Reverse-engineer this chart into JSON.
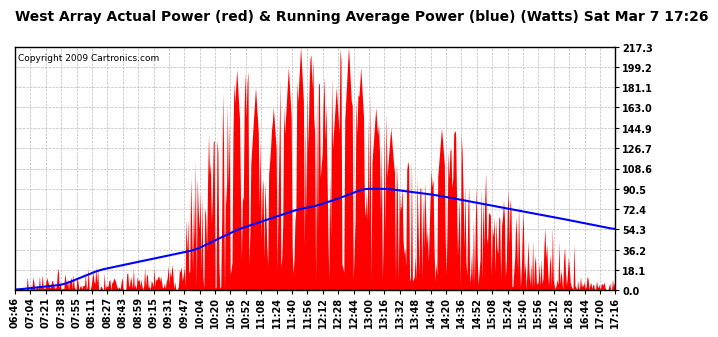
{
  "title": "West Array Actual Power (red) & Running Average Power (blue) (Watts) Sat Mar 7 17:26",
  "copyright": "Copyright 2009 Cartronics.com",
  "ylabel_right_values": [
    217.3,
    199.2,
    181.1,
    163.0,
    144.9,
    126.7,
    108.6,
    90.5,
    72.4,
    54.3,
    36.2,
    18.1,
    0.0
  ],
  "ymax": 217.3,
  "ymin": 0.0,
  "bg_color": "#ffffff",
  "plot_bg_color": "#ffffff",
  "grid_color": "#aaaaaa",
  "red_color": "#ff0000",
  "blue_color": "#0000ff",
  "title_fontsize": 10,
  "copyright_fontsize": 6.5,
  "tick_fontsize": 7,
  "figwidth": 6.9,
  "figheight": 3.75,
  "x_tick_labels": [
    "06:46",
    "07:04",
    "07:21",
    "07:38",
    "07:55",
    "08:11",
    "08:27",
    "08:43",
    "08:59",
    "09:15",
    "09:31",
    "09:47",
    "10:04",
    "10:20",
    "10:36",
    "10:52",
    "11:08",
    "11:24",
    "11:40",
    "11:56",
    "12:12",
    "12:28",
    "12:44",
    "13:00",
    "13:16",
    "13:32",
    "13:48",
    "14:04",
    "14:20",
    "14:36",
    "14:52",
    "15:08",
    "15:24",
    "15:40",
    "15:56",
    "16:12",
    "16:28",
    "16:44",
    "17:00",
    "17:16"
  ],
  "blue_keypoints_x": [
    0.0,
    0.08,
    0.14,
    0.22,
    0.3,
    0.37,
    0.42,
    0.47,
    0.5,
    0.54,
    0.58,
    0.62,
    0.7,
    0.8,
    0.9,
    1.0
  ],
  "blue_keypoints_y": [
    0.5,
    5.0,
    18.0,
    27.0,
    36.0,
    54.0,
    63.0,
    72.0,
    75.0,
    82.0,
    90.5,
    90.5,
    85.0,
    75.0,
    65.0,
    54.3
  ]
}
